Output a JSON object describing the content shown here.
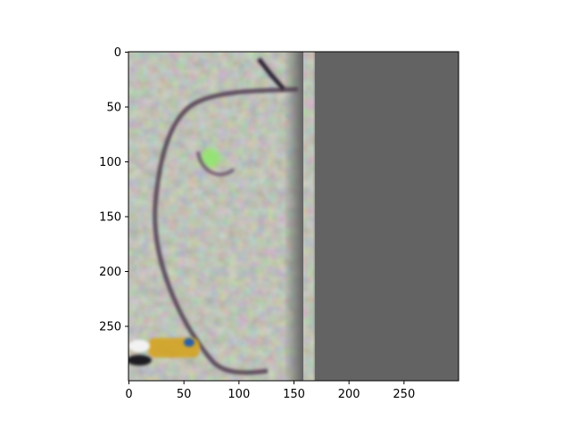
{
  "figure": {
    "x_axis": {
      "ticks": [
        "0",
        "50",
        "100",
        "150",
        "200",
        "250"
      ],
      "tick_values": [
        0,
        50,
        100,
        150,
        200,
        250
      ],
      "range": [
        0,
        300
      ]
    },
    "y_axis": {
      "ticks": [
        "0",
        "50",
        "100",
        "150",
        "200",
        "250"
      ],
      "tick_values": [
        0,
        50,
        100,
        150,
        200,
        250
      ],
      "range": [
        0,
        300
      ],
      "inverted": true
    },
    "image": {
      "description_left": "blurred grayish-green microscopy-like texture with a dark curved arc and a small bright green spot",
      "right_fill_color": "#636363",
      "left_texture_color": "#7f8474",
      "arc_color": "#4c3a4c",
      "spot_color": "#8fe86a",
      "bottom_blob_color": "#d4a420"
    }
  }
}
